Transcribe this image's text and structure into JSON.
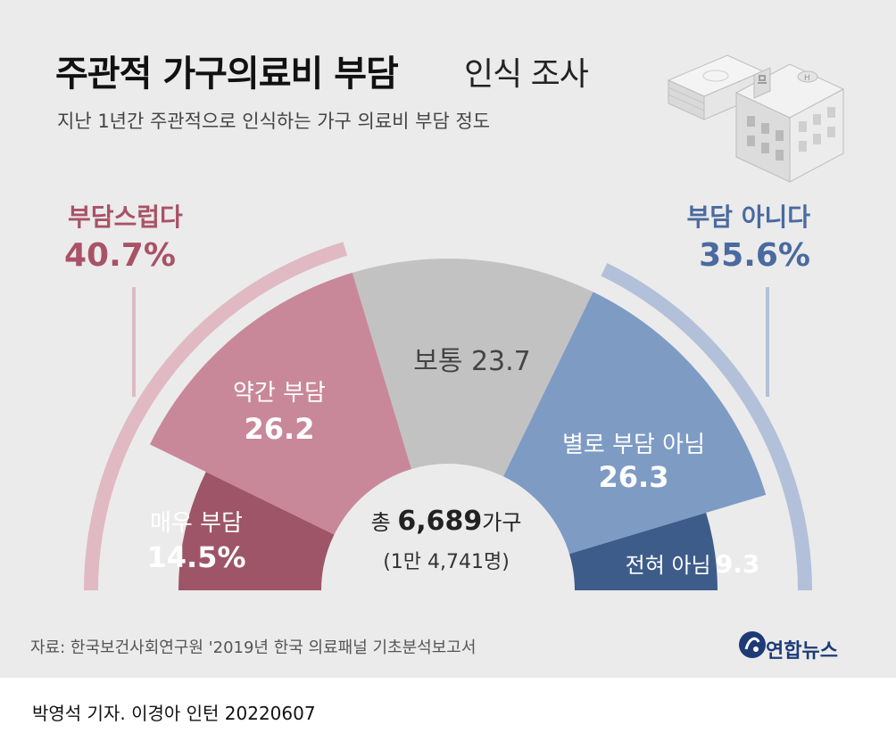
{
  "title": {
    "main": "주관적 가구의료비 부담",
    "sub": "인식 조사"
  },
  "subtitle": "지난 1년간 주관적으로 인식하는 가구 의료비 부담 정도",
  "groups": {
    "burden": {
      "label": "부담스럽다",
      "value": "40.7%"
    },
    "no_burden": {
      "label": "부담 아니다",
      "value": "35.6%"
    }
  },
  "segments": [
    {
      "label": "매우 부담",
      "value_text": "14.5%"
    },
    {
      "label": "약간 부담",
      "value_text": "26.2"
    },
    {
      "label": "보통",
      "value_text": "23.7"
    },
    {
      "label": "별로 부담 아님",
      "value_text": "26.3"
    },
    {
      "label": "전혀 아님",
      "value_text": "9.3"
    }
  ],
  "total": {
    "prefix": "총",
    "number": "6,689",
    "unit": "가구",
    "note": "(1만 4,741명)"
  },
  "source": "자료: 한국보건사회연구원 '2019년 한국 의료패널 기초분석보고서",
  "byline": "박영석 기자. 이경아 인턴  20220607",
  "logo": "연합뉴스",
  "colors": {
    "very_burden": "#9e5567",
    "some_burden": "#c8889a",
    "normal": "#c2c2c2",
    "not_much": "#7e9bc4",
    "not_at_all": "#3d5c8a",
    "burden_ring": "#e0b9c3",
    "no_burden_ring": "#b3c0d9",
    "burden_text": "#a95266",
    "no_burden_text": "#4a6aa0"
  },
  "chart_data": {
    "type": "pie",
    "categories": [
      "매우 부담",
      "약간 부담",
      "보통",
      "별로 부담 아님",
      "전혀 아님"
    ],
    "values": [
      14.5,
      26.2,
      23.7,
      26.3,
      9.3
    ],
    "unit": "%",
    "title": "주관적 가구의료비 부담 인식 조사",
    "group_totals": {
      "부담스럽다": 40.7,
      "부담 아니다": 35.6
    }
  }
}
